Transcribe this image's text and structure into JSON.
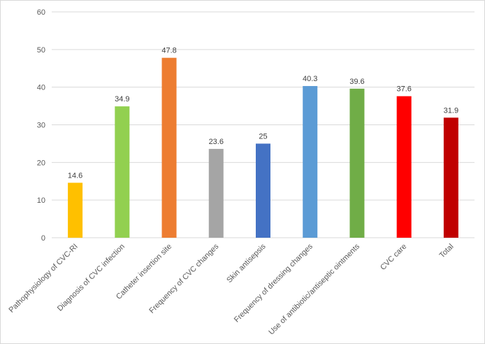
{
  "chart_data": {
    "type": "bar",
    "categories": [
      "Pathophysiology of CVC-RI",
      "Diagnosis of CVC infection",
      "Catheter insertion site",
      "Frequency of CVC changes",
      "Skin antisepsis",
      "Frequency of dressing changes",
      "Use of antibiotic/antiseptic ointments",
      "CVC care",
      "Total"
    ],
    "values": [
      14.6,
      34.9,
      47.8,
      23.6,
      25,
      40.3,
      39.6,
      37.6,
      31.9
    ],
    "value_labels": [
      "14.6",
      "34.9",
      "47.8",
      "23.6",
      "25",
      "40.3",
      "39.6",
      "37.6",
      "31.9"
    ],
    "colors": [
      "#ffc000",
      "#92d050",
      "#ed7d31",
      "#a5a5a5",
      "#4472c4",
      "#5b9bd5",
      "#70ad47",
      "#ff0000",
      "#c00000"
    ],
    "ylim": [
      0,
      60
    ],
    "yticks": [
      0,
      10,
      20,
      30,
      40,
      50,
      60
    ],
    "grid": true,
    "legend": "none"
  }
}
